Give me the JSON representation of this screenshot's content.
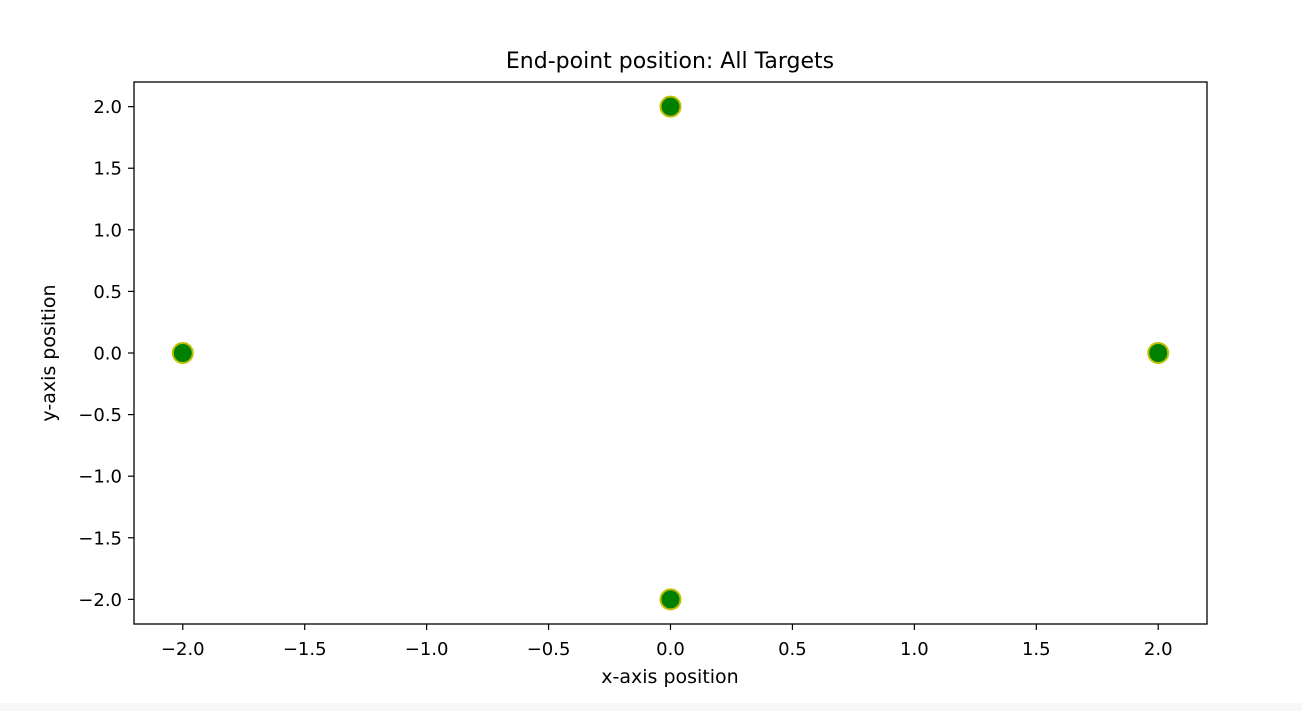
{
  "chart_data": {
    "type": "scatter",
    "title": "End-point position: All Targets",
    "xlabel": "x-axis position",
    "ylabel": "y-axis position",
    "xlim": [
      -2.2,
      2.2
    ],
    "ylim": [
      -2.2,
      2.2
    ],
    "xticks": [
      -2.0,
      -1.5,
      -1.0,
      -0.5,
      0.0,
      0.5,
      1.0,
      1.5,
      2.0
    ],
    "yticks": [
      -2.0,
      -1.5,
      -1.0,
      -0.5,
      0.0,
      0.5,
      1.0,
      1.5,
      2.0
    ],
    "xtick_labels": [
      "−2.0",
      "−1.5",
      "−1.0",
      "−0.5",
      "0.0",
      "0.5",
      "1.0",
      "1.5",
      "2.0"
    ],
    "ytick_labels": [
      "−2.0",
      "−1.5",
      "−1.0",
      "−0.5",
      "0.0",
      "0.5",
      "1.0",
      "1.5",
      "2.0"
    ],
    "grid": false,
    "legend": false,
    "marker_fill": "#008000",
    "marker_edge": "#bfbf00",
    "points": [
      {
        "x": 0.0,
        "y": 2.0
      },
      {
        "x": -2.0,
        "y": 0.0
      },
      {
        "x": 2.0,
        "y": 0.0
      },
      {
        "x": 0.0,
        "y": -2.0
      }
    ]
  }
}
